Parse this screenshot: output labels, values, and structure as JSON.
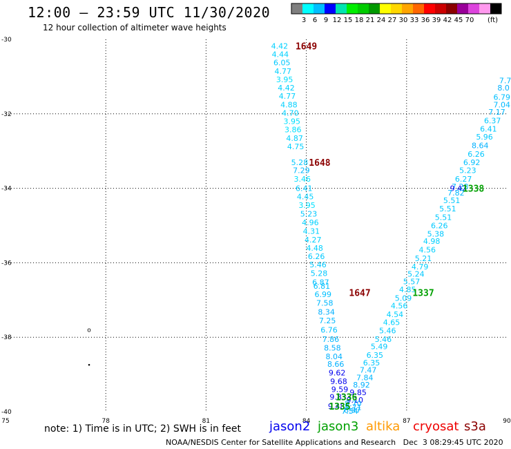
{
  "header": {
    "title": "12:00 – 23:59 UTC 11/30/2020",
    "subtitle": "12 hour collection of altimeter wave heights"
  },
  "colorbar": {
    "unit": "(ft)",
    "colors": [
      "#7f7f7f",
      "#00ffff",
      "#00bfff",
      "#0000ff",
      "#00e5b0",
      "#00ee00",
      "#00cc00",
      "#009900",
      "#ffff00",
      "#ffd700",
      "#ffa500",
      "#ff6600",
      "#ff0000",
      "#cc0000",
      "#8b0000",
      "#990099",
      "#dd44dd",
      "#ff99ee",
      "#000000"
    ],
    "labels": [
      "3",
      "6",
      "9",
      "12",
      "15",
      "18",
      "21",
      "24",
      "27",
      "30",
      "33",
      "36",
      "39",
      "42",
      "45",
      "70"
    ]
  },
  "footer": {
    "note": "note: 1) Time is in UTC; 2) SWH is in feet",
    "satellites": [
      {
        "name": "jason2",
        "color": "#0000ee"
      },
      {
        "name": "jason3",
        "color": "#00a000"
      },
      {
        "name": "altika",
        "color": "#ff9900"
      },
      {
        "name": "cryosat",
        "color": "#ee0000"
      },
      {
        "name": "s3a",
        "color": "#8b0000"
      }
    ],
    "credit": "NOAA/NESDIS Center for Satellite Applications and Research   Dec  3 08:29:45 UTC 2020"
  },
  "chart_data": {
    "type": "scatter",
    "title": "12:00 – 23:59 UTC 11/30/2020",
    "subtitle": "12 hour collection of altimeter wave heights",
    "xlim": [
      75,
      90
    ],
    "ylim": [
      -40,
      -30
    ],
    "x_ticks": [
      75,
      78,
      81,
      84,
      87,
      90
    ],
    "y_ticks": [
      -30,
      -32,
      -34,
      -36,
      -38,
      -40
    ],
    "x_tick_labels": [
      "75",
      "78",
      "81",
      "84",
      "87",
      "90"
    ],
    "y_tick_labels": [
      "-30",
      "-32",
      "-34",
      "-36",
      "-38",
      "-40"
    ],
    "grid": true,
    "series": [
      {
        "name": "s3a",
        "color": "#8b0000",
        "time_labels": [
          {
            "lon": 84.0,
            "lat": -30.18,
            "label": "1649"
          },
          {
            "lon": 84.4,
            "lat": -33.3,
            "label": "1648"
          },
          {
            "lon": 85.6,
            "lat": -36.8,
            "label": "1647"
          }
        ],
        "points": [
          {
            "lon": 83.2,
            "lat": -30.18,
            "swh": "4.42",
            "color": "#00d0ff"
          },
          {
            "lon": 83.22,
            "lat": -30.4,
            "swh": "4.44",
            "color": "#00d0ff"
          },
          {
            "lon": 83.27,
            "lat": -30.62,
            "swh": "6.05",
            "color": "#00c8ff"
          },
          {
            "lon": 83.3,
            "lat": -30.85,
            "swh": "4.77",
            "color": "#00d0ff"
          },
          {
            "lon": 83.35,
            "lat": -31.08,
            "swh": "3.95",
            "color": "#00e0ff"
          },
          {
            "lon": 83.4,
            "lat": -31.3,
            "swh": "4.42",
            "color": "#00d0ff"
          },
          {
            "lon": 83.43,
            "lat": -31.52,
            "swh": "4.77",
            "color": "#00d0ff"
          },
          {
            "lon": 83.48,
            "lat": -31.75,
            "swh": "4.88",
            "color": "#00d0ff"
          },
          {
            "lon": 83.52,
            "lat": -31.98,
            "swh": "4.70",
            "color": "#00d0ff"
          },
          {
            "lon": 83.57,
            "lat": -32.2,
            "swh": "3.95",
            "color": "#00e0ff"
          },
          {
            "lon": 83.6,
            "lat": -32.42,
            "swh": "3.86",
            "color": "#00e0ff"
          },
          {
            "lon": 83.65,
            "lat": -32.65,
            "swh": "4.87",
            "color": "#00d0ff"
          },
          {
            "lon": 83.68,
            "lat": -32.88,
            "swh": "4.75",
            "color": "#00d0ff"
          },
          {
            "lon": 83.8,
            "lat": -33.3,
            "swh": "5.28",
            "color": "#00c8ff"
          },
          {
            "lon": 83.85,
            "lat": -33.52,
            "swh": "7.29",
            "color": "#00b8ff"
          },
          {
            "lon": 83.88,
            "lat": -33.75,
            "swh": "3.46",
            "color": "#00e0ff"
          },
          {
            "lon": 83.93,
            "lat": -34.0,
            "swh": "6.41",
            "color": "#00c8ff"
          },
          {
            "lon": 83.97,
            "lat": -34.22,
            "swh": "4.45",
            "color": "#00d0ff"
          },
          {
            "lon": 84.02,
            "lat": -34.45,
            "swh": "3.95",
            "color": "#00e0ff"
          },
          {
            "lon": 84.07,
            "lat": -34.68,
            "swh": "5.23",
            "color": "#00c8ff"
          },
          {
            "lon": 84.12,
            "lat": -34.92,
            "swh": "4.96",
            "color": "#00d0ff"
          },
          {
            "lon": 84.15,
            "lat": -35.15,
            "swh": "4.31",
            "color": "#00d0ff"
          },
          {
            "lon": 84.2,
            "lat": -35.38,
            "swh": "4.27",
            "color": "#00d0ff"
          },
          {
            "lon": 84.25,
            "lat": -35.6,
            "swh": "4.48",
            "color": "#00d0ff"
          },
          {
            "lon": 84.3,
            "lat": -35.83,
            "swh": "6.26",
            "color": "#00c8ff"
          },
          {
            "lon": 84.35,
            "lat": -36.05,
            "swh": "5.46",
            "color": "#00c8ff"
          },
          {
            "lon": 84.38,
            "lat": -36.28,
            "swh": "5.28",
            "color": "#00c8ff"
          },
          {
            "lon": 84.43,
            "lat": -36.52,
            "swh": "6.87",
            "color": "#00c0ff"
          },
          {
            "lon": 84.46,
            "lat": -36.62,
            "swh": "6.81",
            "color": "#00c0ff"
          },
          {
            "lon": 84.5,
            "lat": -36.85,
            "swh": "6.99",
            "color": "#00c0ff"
          },
          {
            "lon": 84.55,
            "lat": -37.08,
            "swh": "7.58",
            "color": "#00b8ff"
          },
          {
            "lon": 84.6,
            "lat": -37.32,
            "swh": "8.34",
            "color": "#00b0ff"
          },
          {
            "lon": 84.63,
            "lat": -37.55,
            "swh": "7.25",
            "color": "#00b8ff"
          },
          {
            "lon": 84.68,
            "lat": -37.8,
            "swh": "6.76",
            "color": "#00c0ff"
          },
          {
            "lon": 84.73,
            "lat": -38.05,
            "swh": "7.86",
            "color": "#00b8ff"
          },
          {
            "lon": 84.78,
            "lat": -38.28,
            "swh": "8.58",
            "color": "#00b0ff"
          },
          {
            "lon": 84.83,
            "lat": -38.52,
            "swh": "8.04",
            "color": "#00b0ff"
          },
          {
            "lon": 84.88,
            "lat": -38.72,
            "swh": "8.66",
            "color": "#00b0ff"
          },
          {
            "lon": 84.92,
            "lat": -38.95,
            "swh": "9.62",
            "color": "#0000ee"
          },
          {
            "lon": 84.97,
            "lat": -39.18,
            "swh": "9.68",
            "color": "#0000ee"
          },
          {
            "lon": 85.0,
            "lat": -39.4,
            "swh": "9.59",
            "color": "#0000ee"
          },
          {
            "lon": 84.95,
            "lat": -39.6,
            "swh": "9.83",
            "color": "#0000ee"
          },
          {
            "lon": 84.9,
            "lat": -39.85,
            "swh": "9.48",
            "color": "#0000ee"
          }
        ]
      },
      {
        "name": "jason3",
        "color": "#00a000",
        "time_labels": [
          {
            "lon": 89.0,
            "lat": -34.0,
            "label": "1338"
          },
          {
            "lon": 87.5,
            "lat": -36.8,
            "label": "1337"
          },
          {
            "lon": 85.2,
            "lat": -39.6,
            "label": "1336"
          },
          {
            "lon": 85.0,
            "lat": -39.85,
            "label": "1335"
          }
        ],
        "points": [
          {
            "lon": 89.95,
            "lat": -31.1,
            "swh": "7.7",
            "color": "#00b8ff"
          },
          {
            "lon": 89.9,
            "lat": -31.3,
            "swh": "8.0",
            "color": "#00b0ff"
          },
          {
            "lon": 89.85,
            "lat": -31.55,
            "swh": "6.79",
            "color": "#00c0ff"
          },
          {
            "lon": 89.85,
            "lat": -31.75,
            "swh": "7.04",
            "color": "#00b8ff"
          },
          {
            "lon": 89.7,
            "lat": -31.95,
            "swh": "7.17",
            "color": "#00b8ff"
          },
          {
            "lon": 89.57,
            "lat": -32.18,
            "swh": "6.37",
            "color": "#00c8ff"
          },
          {
            "lon": 89.45,
            "lat": -32.4,
            "swh": "6.41",
            "color": "#00c8ff"
          },
          {
            "lon": 89.33,
            "lat": -32.62,
            "swh": "5.96",
            "color": "#00c8ff"
          },
          {
            "lon": 89.2,
            "lat": -32.85,
            "swh": "8.64",
            "color": "#00b0ff"
          },
          {
            "lon": 89.08,
            "lat": -33.08,
            "swh": "6.26",
            "color": "#00c8ff"
          },
          {
            "lon": 88.95,
            "lat": -33.3,
            "swh": "6.92",
            "color": "#00c0ff"
          },
          {
            "lon": 88.83,
            "lat": -33.52,
            "swh": "5.23",
            "color": "#00c8ff"
          },
          {
            "lon": 88.7,
            "lat": -33.75,
            "swh": "6.27",
            "color": "#00c8ff"
          },
          {
            "lon": 88.6,
            "lat": -33.95,
            "swh": "7.28",
            "color": "#00b8ff"
          },
          {
            "lon": 88.55,
            "lat": -34.0,
            "swh": "9.42",
            "color": "#0000ee"
          },
          {
            "lon": 88.48,
            "lat": -34.12,
            "swh": "7.82",
            "color": "#00b8ff"
          },
          {
            "lon": 88.35,
            "lat": -34.32,
            "swh": "5.51",
            "color": "#00c8ff"
          },
          {
            "lon": 88.23,
            "lat": -34.55,
            "swh": "5.51",
            "color": "#00c8ff"
          },
          {
            "lon": 88.1,
            "lat": -34.78,
            "swh": "5.51",
            "color": "#00c8ff"
          },
          {
            "lon": 87.98,
            "lat": -35.0,
            "swh": "6.26",
            "color": "#00c8ff"
          },
          {
            "lon": 87.87,
            "lat": -35.22,
            "swh": "5.38",
            "color": "#00c8ff"
          },
          {
            "lon": 87.75,
            "lat": -35.42,
            "swh": "4.98",
            "color": "#00d0ff"
          },
          {
            "lon": 87.62,
            "lat": -35.65,
            "swh": "4.56",
            "color": "#00d0ff"
          },
          {
            "lon": 87.5,
            "lat": -35.88,
            "swh": "5.21",
            "color": "#00c8ff"
          },
          {
            "lon": 87.4,
            "lat": -36.1,
            "swh": "4.79",
            "color": "#00d0ff"
          },
          {
            "lon": 87.28,
            "lat": -36.3,
            "swh": "5.24",
            "color": "#00c8ff"
          },
          {
            "lon": 87.15,
            "lat": -36.5,
            "swh": "5.57",
            "color": "#00c8ff"
          },
          {
            "lon": 87.03,
            "lat": -36.72,
            "swh": "4.85",
            "color": "#00d0ff"
          },
          {
            "lon": 86.9,
            "lat": -36.95,
            "swh": "5.09",
            "color": "#00c8ff"
          },
          {
            "lon": 86.78,
            "lat": -37.15,
            "swh": "4.56",
            "color": "#00d0ff"
          },
          {
            "lon": 86.65,
            "lat": -37.38,
            "swh": "4.54",
            "color": "#00d0ff"
          },
          {
            "lon": 86.55,
            "lat": -37.6,
            "swh": "4.65",
            "color": "#00d0ff"
          },
          {
            "lon": 86.43,
            "lat": -37.82,
            "swh": "5.46",
            "color": "#00c8ff"
          },
          {
            "lon": 86.3,
            "lat": -38.05,
            "swh": "5.46",
            "color": "#00c8ff"
          },
          {
            "lon": 86.18,
            "lat": -38.25,
            "swh": "5.49",
            "color": "#00c8ff"
          },
          {
            "lon": 86.05,
            "lat": -38.48,
            "swh": "6.35",
            "color": "#00c8ff"
          },
          {
            "lon": 85.95,
            "lat": -38.68,
            "swh": "6.35",
            "color": "#00c8ff"
          },
          {
            "lon": 85.85,
            "lat": -38.88,
            "swh": "7.47",
            "color": "#00b8ff"
          },
          {
            "lon": 85.75,
            "lat": -39.08,
            "swh": "7.84",
            "color": "#00b8ff"
          },
          {
            "lon": 85.65,
            "lat": -39.28,
            "swh": "8.92",
            "color": "#00b0ff"
          },
          {
            "lon": 85.55,
            "lat": -39.48,
            "swh": "9.85",
            "color": "#0000ee"
          },
          {
            "lon": 85.45,
            "lat": -39.68,
            "swh": "9.10",
            "color": "#0000ee"
          },
          {
            "lon": 85.4,
            "lat": -39.78,
            "swh": "8.70",
            "color": "#00b0ff"
          },
          {
            "lon": 85.4,
            "lat": -39.88,
            "swh": "8.71",
            "color": "#00b0ff"
          },
          {
            "lon": 85.38,
            "lat": -39.95,
            "swh": "8.97",
            "color": "#00b0ff"
          },
          {
            "lon": 85.3,
            "lat": -39.98,
            "swh": "7.54",
            "color": "#00b8ff"
          }
        ]
      }
    ],
    "coastline_marks": [
      {
        "lon": 77.5,
        "lat": -37.8,
        "symbol": "o"
      },
      {
        "lon": 77.5,
        "lat": -38.75,
        "symbol": "•"
      }
    ]
  }
}
